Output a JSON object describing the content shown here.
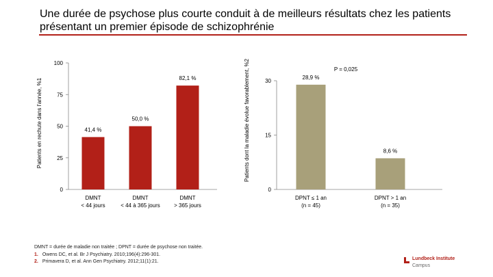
{
  "slide": {
    "title": "Une durée de psychose plus courte conduit à de meilleurs résultats chez les patients présentant un premier épisode de schizophrénie",
    "footnote_abbrev": "DMNT = durée de maladie non traitée ; DPNT = durée de psychose non traitée.",
    "references": [
      {
        "num": "1.",
        "text": "Owens DC, et al. Br J Psychiatry. 2010;196(4):296-301."
      },
      {
        "num": "2.",
        "text": "Primavera D, et al. Ann Gen Psychiatry. 2012;11(1):21."
      }
    ],
    "logo": {
      "line1": "Lundbeck Institute",
      "line2": "Campus",
      "color": "#b22018"
    }
  },
  "chart_data": [
    {
      "type": "bar",
      "ylabel": "Patients en rechute dans l'année, %1",
      "ylim": [
        0,
        100
      ],
      "yticks": [
        0,
        25,
        50,
        75,
        100
      ],
      "categories": [
        "DMNT\n< 44 jours",
        "DMNT\n< 44 à 365 jours",
        "DMNT\n> 365 jours"
      ],
      "values": [
        41.4,
        50.0,
        82.1
      ],
      "value_labels": [
        "41,4 %",
        "50,0 %",
        "82,1 %"
      ],
      "color": "#b22018",
      "grid": false
    },
    {
      "type": "bar",
      "ylabel": "Patients dont la maladie évolue favorablement, %2",
      "ylim": [
        0,
        30
      ],
      "yticks": [
        0,
        15,
        30
      ],
      "categories": [
        "DPNT ≤ 1 an\n(n = 45)",
        "DPNT > 1 an\n(n = 35)"
      ],
      "values": [
        28.9,
        8.6
      ],
      "value_labels": [
        "28,9 %",
        "8,6 %"
      ],
      "annotation": "P = 0,025",
      "color": "#a8a07a",
      "grid": false
    }
  ]
}
